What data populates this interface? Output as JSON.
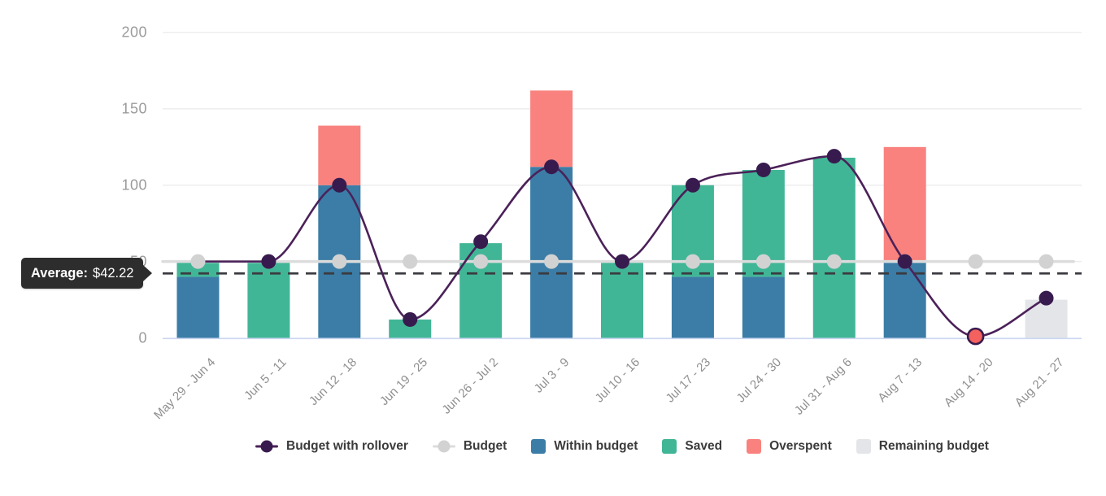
{
  "average_tooltip": {
    "label": "Average:",
    "value": "$42.22"
  },
  "colors": {
    "rollover_line": "#4b2159",
    "rollover_dot": "#381b4e",
    "budget_line": "#dcdcdc",
    "budget_dot": "#d2d2d2",
    "within_budget": "#3b7da6",
    "saved": "#41b696",
    "overspent": "#f9827e",
    "remaining_budget": "#e3e5e9",
    "overspent_point_fill": "#f4615e",
    "average_dash": "#3b3b41",
    "gridline": "#ededef",
    "axis_line": "#cbd6f1",
    "y_tick_text": "#9b9b9b",
    "x_tick_text": "#8f8f8f",
    "legend_text": "#3b3b3b",
    "tooltip_bg": "#2d2d2d",
    "tooltip_text": "#ffffff"
  },
  "chart_data": {
    "type": "bar+line",
    "stacked": true,
    "title": "",
    "xlabel": "",
    "ylabel": "",
    "ylim": [
      0,
      200
    ],
    "yticks": [
      0,
      50,
      100,
      150,
      200
    ],
    "grid": "horizontal",
    "legend_position": "bottom",
    "average_line": {
      "value": 42.22,
      "style": "dashed"
    },
    "categories": [
      "May 29 - Jun 4",
      "Jun 5 - 11",
      "Jun 12 - 18",
      "Jun 19 - 25",
      "Jun 26 - Jul 2",
      "Jul 3 - 9",
      "Jul 10 - 16",
      "Jul 17 - 23",
      "Jul 24 - 30",
      "Jul 31 - Aug 6",
      "Aug 7 - 13",
      "Aug 14 - 20",
      "Aug 21 - 27"
    ],
    "series": [
      {
        "name": "Budget with rollover",
        "type": "line",
        "color_key": "rollover_line",
        "values": [
          50,
          50,
          100,
          12,
          63,
          112,
          50,
          100,
          110,
          119,
          50,
          1,
          26
        ]
      },
      {
        "name": "Budget",
        "type": "line",
        "color_key": "budget_line",
        "values": [
          50,
          50,
          50,
          50,
          50,
          50,
          50,
          50,
          50,
          50,
          50,
          50,
          50
        ]
      },
      {
        "name": "Within budget",
        "type": "bar",
        "color_key": "within_budget",
        "values": [
          40,
          0,
          100,
          0,
          0,
          112,
          0,
          40,
          40,
          0,
          50,
          0,
          0
        ]
      },
      {
        "name": "Saved",
        "type": "bar",
        "color_key": "saved",
        "values": [
          10,
          50,
          0,
          12,
          62,
          0,
          50,
          60,
          70,
          118,
          0,
          0,
          0
        ]
      },
      {
        "name": "Overspent",
        "type": "bar",
        "color_key": "overspent",
        "values": [
          0,
          0,
          39,
          0,
          0,
          50,
          0,
          0,
          0,
          0,
          75,
          0,
          0
        ]
      },
      {
        "name": "Remaining budget",
        "type": "bar",
        "color_key": "remaining_budget",
        "values": [
          0,
          0,
          0,
          0,
          0,
          0,
          0,
          0,
          0,
          0,
          0,
          0,
          25
        ]
      }
    ],
    "special_points": [
      {
        "series": "Budget with rollover",
        "index": 11,
        "style": "overspent_point"
      }
    ]
  },
  "legend_items": [
    {
      "label": "Budget with rollover",
      "marker": "line-dot",
      "dot_color_key": "rollover_dot",
      "line_color_key": "rollover_line"
    },
    {
      "label": "Budget",
      "marker": "line-dot",
      "dot_color_key": "budget_dot",
      "line_color_key": "budget_line"
    },
    {
      "label": "Within budget",
      "marker": "square",
      "color_key": "within_budget"
    },
    {
      "label": "Saved",
      "marker": "square",
      "color_key": "saved"
    },
    {
      "label": "Overspent",
      "marker": "square",
      "color_key": "overspent"
    },
    {
      "label": "Remaining budget",
      "marker": "square",
      "color_key": "remaining_budget"
    }
  ]
}
